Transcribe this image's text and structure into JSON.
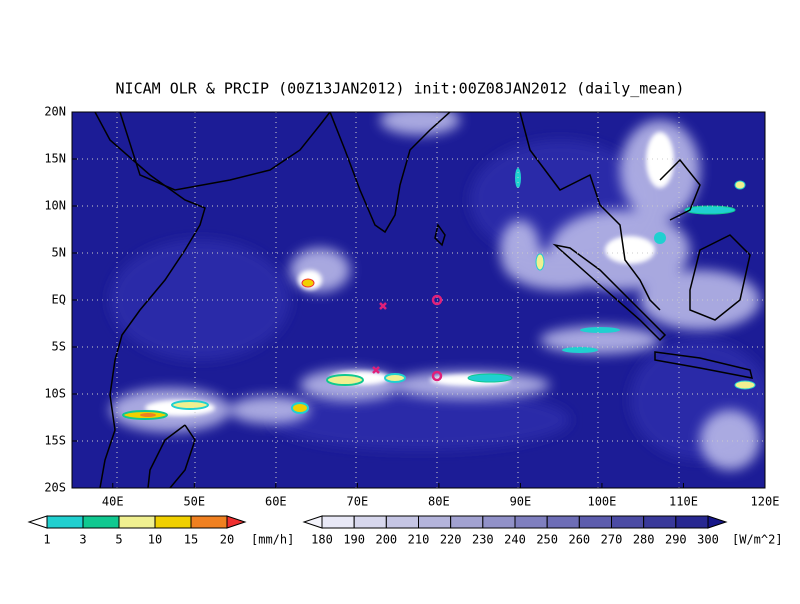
{
  "title": "NICAM OLR & PRCIP (00Z13JAN2012) init:00Z08JAN2012 (daily_mean)",
  "lat_labels": [
    "20N",
    "15N",
    "10N",
    "5N",
    "EQ",
    "5S",
    "10S",
    "15S",
    "20S"
  ],
  "lon_labels": [
    "40E",
    "50E",
    "60E",
    "70E",
    "80E",
    "90E",
    "100E",
    "110E",
    "120E"
  ],
  "precip_scale": {
    "labels": [
      1,
      3,
      5,
      10,
      15,
      20
    ],
    "unit": "[mm/h]"
  },
  "olr_scale": {
    "labels": [
      180,
      190,
      200,
      210,
      220,
      230,
      240,
      250,
      260,
      270,
      280,
      290,
      300
    ],
    "unit": "[W/m^2]"
  }
}
